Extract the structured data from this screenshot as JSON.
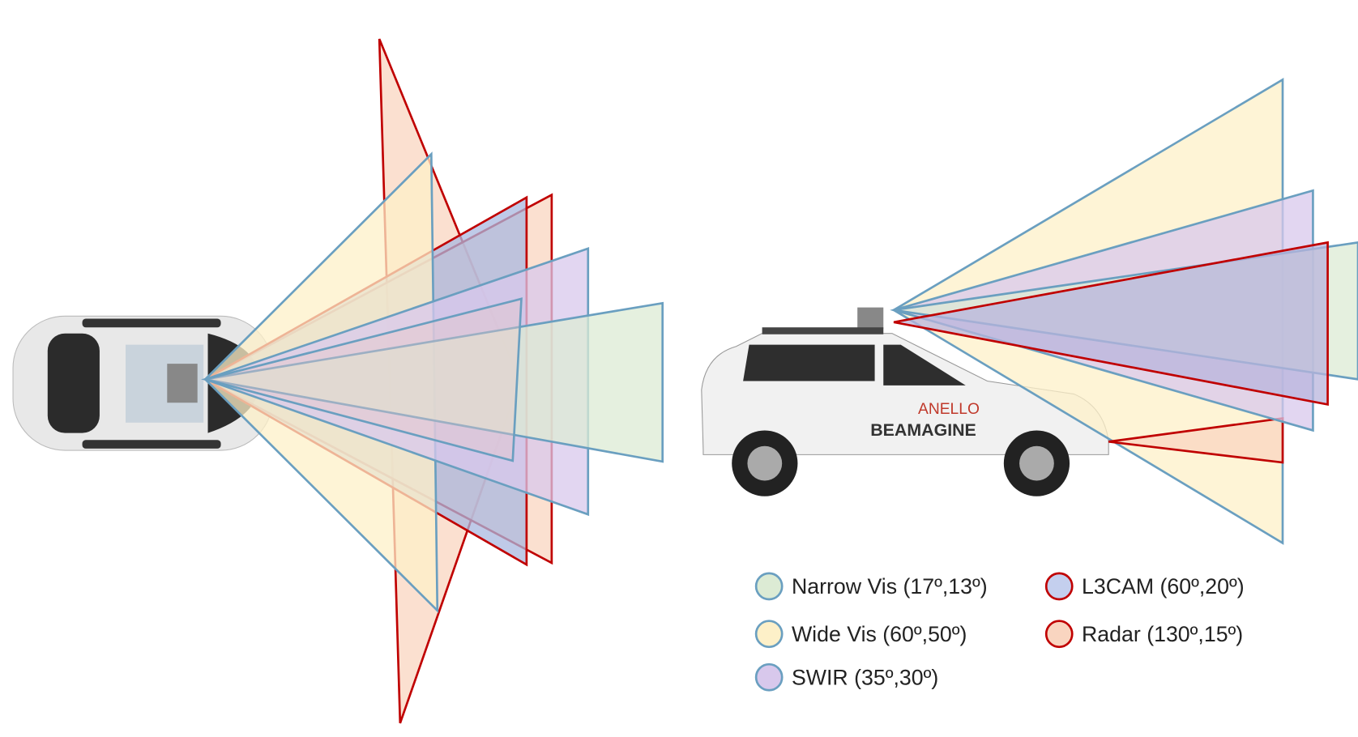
{
  "legend": {
    "items": [
      {
        "label": "Narrow Vis (17º,13º)",
        "fill": "#dcebd4",
        "stroke": "#6a9fc0"
      },
      {
        "label": "Wide Vis (60º,50º)",
        "fill": "#fdf0c8",
        "stroke": "#6a9fc0"
      },
      {
        "label": "SWIR (35º,30º)",
        "fill": "#d8c8ec",
        "stroke": "#6a9fc0"
      },
      {
        "label": "L3CAM (60º,20º)",
        "fill": "#c4cfee",
        "stroke": "#c00000"
      },
      {
        "label": "Radar (130º,15º)",
        "fill": "#f9d5c0",
        "stroke": "#c00000"
      }
    ]
  },
  "vehicle_logos": [
    "ANELLO",
    "BEAMAGINE"
  ]
}
